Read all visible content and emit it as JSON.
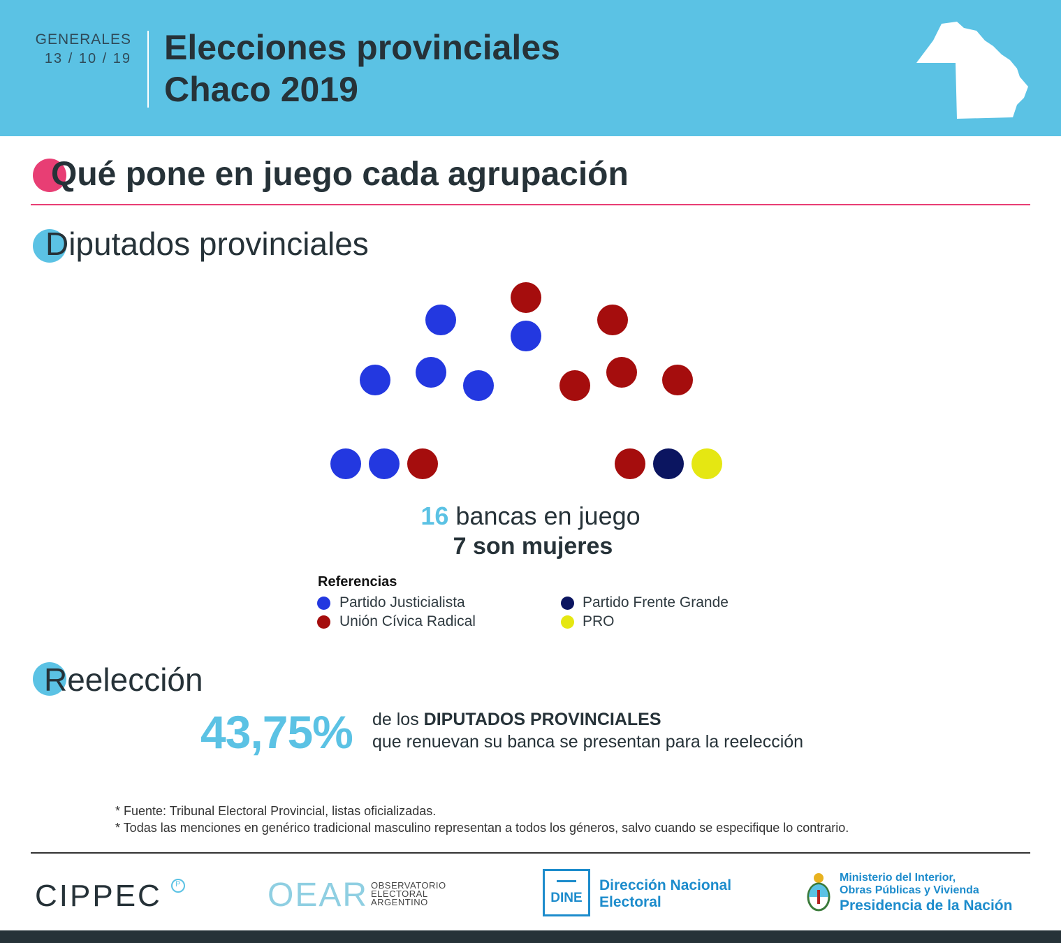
{
  "header": {
    "date_label": "GENERALES",
    "date_value": "13 / 10 / 19",
    "title_line1": "Elecciones provinciales",
    "title_line2": "Chaco 2019"
  },
  "sections": {
    "main_title": "Qué pone en juego cada agrupación",
    "diputados_title": "Diputados provinciales",
    "reeleccion_title": "Reelección"
  },
  "chamber": {
    "seats": [
      {
        "party": "Partido Justicialista"
      },
      {
        "party": "Partido Justicialista"
      },
      {
        "party": "Partido Justicialista"
      },
      {
        "party": "Partido Justicialista"
      },
      {
        "party": "Partido Justicialista"
      },
      {
        "party": "Partido Justicialista"
      },
      {
        "party": "Partido Justicialista"
      },
      {
        "party": "Unión Cívica Radical"
      },
      {
        "party": "Unión Cívica Radical"
      },
      {
        "party": "Unión Cívica Radical"
      },
      {
        "party": "Unión Cívica Radical"
      },
      {
        "party": "Unión Cívica Radical"
      },
      {
        "party": "Unión Cívica Radical"
      },
      {
        "party": "Unión Cívica Radical"
      },
      {
        "party": "Partido Frente Grande"
      },
      {
        "party": "PRO"
      }
    ],
    "total_seats": "16",
    "total_label": "bancas en juego",
    "women_label": "7 son mujeres"
  },
  "legend": {
    "title": "Referencias",
    "items": [
      {
        "label": "Partido Justicialista",
        "color": "#2338e0"
      },
      {
        "label": "Unión Cívica Radical",
        "color": "#a50d0d"
      },
      {
        "label": "Partido Frente Grande",
        "color": "#0b1560"
      },
      {
        "label": "PRO",
        "color": "#e5e712"
      }
    ]
  },
  "reeleccion": {
    "percentage": "43,75%",
    "line1_prefix": "de los",
    "line1_bold": "DIPUTADOS PROVINCIALES",
    "line2": "que renuevan su banca se presentan para la reelección"
  },
  "notes": [
    "* Fuente: Tribunal Electoral Provincial, listas oficializadas.",
    "* Todas las menciones en genérico tradicional masculino representan a todos los géneros, salvo cuando se especifique lo contrario."
  ],
  "logos": {
    "cippec": "CIPPEC",
    "cippec_mark": "P",
    "oear": "OEAR",
    "oear_sub": [
      "OBSERVATORIO",
      "ELECTORAL",
      "ARGENTINO"
    ],
    "dine": "DINE",
    "dine_name": [
      "Dirección Nacional",
      "Electoral"
    ],
    "ministerio": [
      "Ministerio del Interior,",
      "Obras Públicas y Vivienda"
    ],
    "presidencia": "Presidencia de la Nación"
  },
  "colors": {
    "header_bg": "#5bc2e4",
    "accent_pink": "#e83e74",
    "accent_blue": "#5bc2e4",
    "dark": "#263238"
  }
}
